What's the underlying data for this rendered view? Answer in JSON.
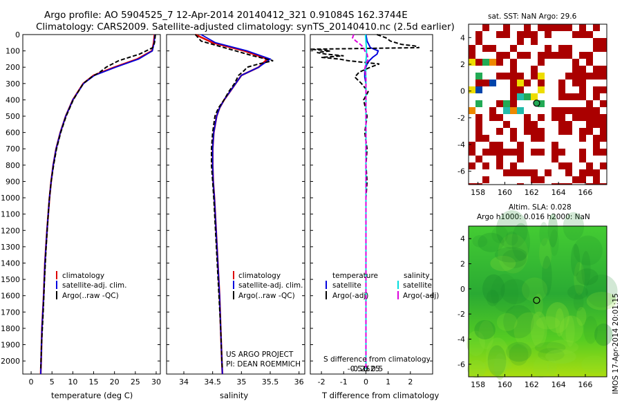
{
  "titles": {
    "line1": "Argo profile: AO 5904525_7 12-Apr-2014 20140412_321 0.91084S 162.3744E",
    "line2": "Climatology: CARS2009. Satellite-adjusted climatology: synTS_20140410.nc (2.5d earlier)"
  },
  "credits": {
    "project": "US ARGO PROJECT",
    "pi": "PI: DEAN ROEMMICH",
    "stamp": "IMOS 17-Apr-2014 20:01:15"
  },
  "colors": {
    "climatology": "#dd0000",
    "satellite_adj": "#0000dd",
    "argo": "#000000",
    "sal_satellite": "#00dddd",
    "sal_argo": "#dd00dd",
    "sst_red": "#aa0000",
    "sla_green": "#44cc22"
  },
  "legend_profiles": [
    "climatology",
    "satellite-adj. clim.",
    "Argo(..raw -QC)"
  ],
  "legend_diff": {
    "temp_header": "temperature",
    "sal_header": "salinity",
    "temp_sat": "satellite",
    "temp_argo": "Argo(-adj)",
    "sal_sat": "satellite",
    "sal_argo": "Argo(-adj)"
  },
  "chart_data": [
    {
      "type": "line",
      "id": "temperature",
      "xlabel": "temperature (deg C)",
      "ylabel": "",
      "xlim": [
        -2,
        31
      ],
      "ylim": [
        2080,
        0
      ],
      "xticks": [
        0,
        5,
        10,
        15,
        20,
        25,
        30
      ],
      "yticks": [
        0,
        100,
        200,
        300,
        400,
        500,
        600,
        700,
        800,
        900,
        1000,
        1100,
        1200,
        1300,
        1400,
        1500,
        1600,
        1700,
        1800,
        1900,
        2000
      ],
      "series": [
        {
          "name": "climatology",
          "y": [
            0,
            50,
            100,
            150,
            200,
            250,
            300,
            400,
            500,
            600,
            700,
            800,
            900,
            1000,
            1200,
            1400,
            1600,
            1800,
            2000,
            2080
          ],
          "x": [
            29.6,
            29.4,
            29.0,
            25.5,
            20.0,
            15.0,
            12.5,
            10.0,
            8.3,
            7.0,
            6.0,
            5.3,
            4.8,
            4.4,
            3.8,
            3.3,
            3.0,
            2.6,
            2.4,
            2.3
          ]
        },
        {
          "name": "satellite-adj. clim.",
          "y": [
            0,
            50,
            100,
            150,
            200,
            250,
            300,
            400,
            500,
            600,
            700,
            800,
            900,
            1000,
            1200,
            1400,
            1600,
            1800,
            2000,
            2080
          ],
          "x": [
            29.7,
            29.5,
            29.1,
            25.8,
            20.3,
            15.2,
            12.6,
            10.0,
            8.3,
            7.0,
            6.0,
            5.3,
            4.8,
            4.4,
            3.8,
            3.3,
            3.0,
            2.6,
            2.4,
            2.3
          ]
        },
        {
          "name": "Argo(..raw -QC)",
          "y": [
            0,
            50,
            80,
            120,
            160,
            200,
            230,
            260,
            300,
            400,
            500,
            600,
            700,
            800,
            900,
            1000,
            1100,
            1300,
            1500,
            1700,
            1900,
            2050
          ],
          "x": [
            29.8,
            29.6,
            29.2,
            26.0,
            21.0,
            18.0,
            16.5,
            14.5,
            12.5,
            10.1,
            8.4,
            7.1,
            6.1,
            5.4,
            4.8,
            4.4,
            4.1,
            3.6,
            3.2,
            2.9,
            2.5,
            2.3
          ]
        }
      ]
    },
    {
      "type": "line",
      "id": "salinity",
      "xlabel": "salinity",
      "ylabel": "",
      "xlim": [
        33.7,
        36.1
      ],
      "ylim": [
        2080,
        0
      ],
      "xticks": [
        34,
        34.5,
        35,
        35.5,
        36
      ],
      "series": [
        {
          "name": "climatology",
          "y": [
            0,
            50,
            100,
            150,
            200,
            250,
            300,
            350,
            400,
            450,
            500,
            600,
            700,
            800,
            900,
            1000,
            1200,
            1400,
            1600,
            1800,
            2000,
            2080
          ],
          "x": [
            34.2,
            34.5,
            35.05,
            35.45,
            35.3,
            35.0,
            34.9,
            34.8,
            34.7,
            34.62,
            34.57,
            34.52,
            34.5,
            34.5,
            34.51,
            34.53,
            34.56,
            34.59,
            34.62,
            34.64,
            34.66,
            34.67
          ]
        },
        {
          "name": "satellite-adj. clim.",
          "y": [
            0,
            50,
            100,
            150,
            200,
            250,
            300,
            350,
            400,
            450,
            500,
            600,
            700,
            800,
            900,
            1000,
            1200,
            1400,
            1600,
            1800,
            2000,
            2080
          ],
          "x": [
            34.3,
            34.55,
            35.1,
            35.5,
            35.3,
            35.0,
            34.9,
            34.8,
            34.7,
            34.62,
            34.57,
            34.52,
            34.5,
            34.5,
            34.51,
            34.53,
            34.56,
            34.59,
            34.62,
            34.64,
            34.66,
            34.67
          ]
        },
        {
          "name": "Argo(..raw -QC)",
          "y": [
            0,
            40,
            70,
            100,
            130,
            160,
            180,
            200,
            220,
            250,
            300,
            350,
            400,
            450,
            500,
            600,
            700,
            800,
            900,
            1000,
            1200,
            1400,
            1600,
            1800,
            2000,
            2050
          ],
          "x": [
            34.2,
            34.3,
            34.6,
            34.9,
            35.2,
            35.55,
            35.3,
            35.1,
            35.05,
            34.95,
            34.88,
            34.78,
            34.7,
            34.6,
            34.54,
            34.5,
            34.48,
            34.48,
            34.5,
            34.52,
            34.55,
            34.58,
            34.61,
            34.64,
            34.66,
            34.67
          ]
        }
      ]
    },
    {
      "type": "line",
      "id": "differences",
      "xlabel": "T difference from climatology",
      "xlabel_top": "S difference from climatology",
      "xlim_T": [
        -2.5,
        3.0
      ],
      "xticks_T": [
        -2,
        -1,
        0,
        1,
        2
      ],
      "xticks_S": [
        -0.5,
        -0.25,
        0,
        0.25,
        0.5
      ],
      "xtick_S_labels": [
        "-0.5",
        "-0.25",
        "0",
        "0.25",
        "0.5"
      ],
      "ylim": [
        2080,
        0
      ],
      "series": [
        {
          "name": "temperature satellite",
          "y": [
            0,
            40,
            80,
            100,
            120,
            140,
            160,
            180,
            200,
            230,
            260,
            300,
            400,
            600,
            800,
            1000,
            1400,
            1800,
            2050
          ],
          "x": [
            0.0,
            0.05,
            0.2,
            0.55,
            0.5,
            0.3,
            0.15,
            0.05,
            0.0,
            -0.05,
            -0.05,
            0.0,
            0.0,
            0.0,
            0.0,
            0.0,
            0.0,
            0.0,
            0.0
          ]
        },
        {
          "name": "temperature Argo(-adj)",
          "y": [
            0,
            20,
            40,
            60,
            70,
            80,
            90,
            100,
            110,
            120,
            130,
            140,
            150,
            160,
            180,
            200,
            230,
            260,
            300,
            350,
            400,
            500,
            600,
            700,
            800,
            900,
            1000,
            1200,
            1500,
            1800,
            2050
          ],
          "x": [
            0.5,
            0.9,
            1.1,
            1.6,
            2.2,
            2.4,
            -2.5,
            -1.6,
            -2.2,
            -1.8,
            -1.0,
            -2.0,
            -1.2,
            -0.8,
            0.6,
            0.2,
            -0.3,
            -0.5,
            -0.2,
            0.1,
            -0.1,
            0.05,
            -0.05,
            0.05,
            0.0,
            0.05,
            0.0,
            0.0,
            0.0,
            0.0,
            0.0
          ]
        },
        {
          "name": "salinity satellite",
          "y": [
            0,
            40,
            80,
            120,
            160,
            200,
            300,
            600,
            1000,
            1400,
            1800,
            2050
          ],
          "x": [
            -0.02,
            0.0,
            0.02,
            0.03,
            0.0,
            -0.01,
            0.0,
            0.0,
            0.0,
            0.0,
            0.0,
            0.0
          ]
        },
        {
          "name": "salinity Argo(-adj)",
          "y": [
            0,
            20,
            40,
            60,
            80,
            100,
            120,
            150,
            180,
            210,
            240,
            270,
            300,
            400,
            800,
            1200,
            1600,
            2000,
            2050
          ],
          "x": [
            -0.55,
            -0.6,
            -0.45,
            -0.25,
            -0.1,
            -0.05,
            0.05,
            0.1,
            0.0,
            -0.05,
            -0.02,
            0.0,
            0.0,
            0.0,
            0.0,
            0.0,
            0.0,
            0.0,
            0.0
          ]
        }
      ]
    },
    {
      "type": "heatmap",
      "id": "sst",
      "title": "sat. SST: NaN Argo: 29.6",
      "xlim": [
        157.3,
        167.6
      ],
      "ylim": [
        -7,
        5
      ],
      "xticks": [
        158,
        160,
        162,
        164,
        166
      ],
      "yticks": [
        -6,
        -4,
        -2,
        0,
        2,
        4
      ],
      "float_position": [
        162.37,
        -0.91
      ]
    },
    {
      "type": "heatmap",
      "id": "sla",
      "title": "Altim. SLA: 0.028",
      "subtitle": "Argo h1000: 0.016 h2000: NaN",
      "xlim": [
        157.3,
        167.6
      ],
      "ylim": [
        -7,
        5
      ],
      "xticks": [
        158,
        160,
        162,
        164,
        166
      ],
      "yticks": [
        -6,
        -4,
        -2,
        0,
        2,
        4
      ],
      "float_position": [
        162.37,
        -0.91
      ]
    }
  ]
}
